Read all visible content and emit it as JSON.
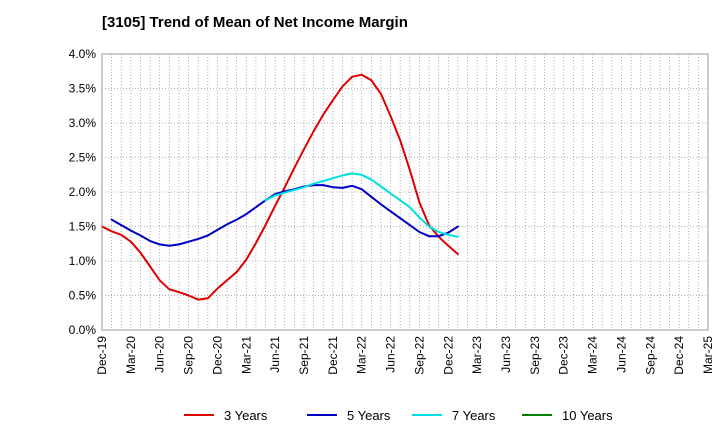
{
  "chart_data": {
    "type": "line",
    "title": "[3105]  Trend of Mean of Net Income Margin",
    "xlabel": "",
    "ylabel": "",
    "ylim": [
      0,
      4.0
    ],
    "yticks": [
      "0.0%",
      "0.5%",
      "1.0%",
      "1.5%",
      "2.0%",
      "2.5%",
      "3.0%",
      "3.5%",
      "4.0%"
    ],
    "x_tick_labels": [
      "Dec-19",
      "Mar-20",
      "Jun-20",
      "Sep-20",
      "Dec-20",
      "Mar-21",
      "Jun-21",
      "Sep-21",
      "Dec-21",
      "Mar-22",
      "Jun-22",
      "Sep-22",
      "Dec-22",
      "Mar-23",
      "Jun-23",
      "Sep-23",
      "Dec-23",
      "Mar-24",
      "Jun-24",
      "Sep-24",
      "Dec-24",
      "Mar-25"
    ],
    "grid": true,
    "legend_position": "bottom",
    "series": [
      {
        "name": "3 Years",
        "color": "#e00000",
        "points": [
          [
            0,
            1.5
          ],
          [
            1,
            1.43
          ],
          [
            2,
            1.38
          ],
          [
            3,
            1.28
          ],
          [
            4,
            1.12
          ],
          [
            5,
            0.92
          ],
          [
            6,
            0.72
          ],
          [
            7,
            0.59
          ],
          [
            8,
            0.55
          ],
          [
            9,
            0.5
          ],
          [
            10,
            0.44
          ],
          [
            11,
            0.46
          ],
          [
            12,
            0.6
          ],
          [
            13,
            0.72
          ],
          [
            14,
            0.84
          ],
          [
            15,
            1.02
          ],
          [
            16,
            1.26
          ],
          [
            17,
            1.52
          ],
          [
            18,
            1.8
          ],
          [
            19,
            2.07
          ],
          [
            20,
            2.35
          ],
          [
            21,
            2.62
          ],
          [
            22,
            2.88
          ],
          [
            23,
            3.12
          ],
          [
            24,
            3.33
          ],
          [
            25,
            3.53
          ],
          [
            26,
            3.67
          ],
          [
            27,
            3.7
          ],
          [
            28,
            3.62
          ],
          [
            29,
            3.42
          ],
          [
            30,
            3.1
          ],
          [
            31,
            2.75
          ],
          [
            32,
            2.32
          ],
          [
            33,
            1.85
          ],
          [
            34,
            1.52
          ],
          [
            35,
            1.35
          ],
          [
            36,
            1.22
          ],
          [
            37,
            1.1
          ]
        ]
      },
      {
        "name": "5 Years",
        "color": "#0000c0",
        "points": [
          [
            1,
            1.6
          ],
          [
            2,
            1.52
          ],
          [
            3,
            1.44
          ],
          [
            4,
            1.37
          ],
          [
            5,
            1.29
          ],
          [
            6,
            1.24
          ],
          [
            7,
            1.22
          ],
          [
            8,
            1.24
          ],
          [
            9,
            1.28
          ],
          [
            10,
            1.32
          ],
          [
            11,
            1.37
          ],
          [
            12,
            1.45
          ],
          [
            13,
            1.53
          ],
          [
            14,
            1.6
          ],
          [
            15,
            1.68
          ],
          [
            16,
            1.78
          ],
          [
            17,
            1.88
          ],
          [
            18,
            1.97
          ],
          [
            19,
            2.01
          ],
          [
            20,
            2.04
          ],
          [
            21,
            2.08
          ],
          [
            22,
            2.1
          ],
          [
            23,
            2.1
          ],
          [
            24,
            2.07
          ],
          [
            25,
            2.06
          ],
          [
            26,
            2.09
          ],
          [
            27,
            2.04
          ],
          [
            28,
            1.93
          ],
          [
            29,
            1.82
          ],
          [
            30,
            1.72
          ],
          [
            31,
            1.62
          ],
          [
            32,
            1.52
          ],
          [
            33,
            1.42
          ],
          [
            34,
            1.36
          ],
          [
            35,
            1.36
          ],
          [
            36,
            1.41
          ],
          [
            37,
            1.5
          ]
        ]
      },
      {
        "name": "7 Years",
        "color": "#00e0e0",
        "points": [
          [
            17,
            1.88
          ],
          [
            18,
            1.95
          ],
          [
            19,
            1.99
          ],
          [
            20,
            2.03
          ],
          [
            21,
            2.07
          ],
          [
            22,
            2.12
          ],
          [
            23,
            2.16
          ],
          [
            24,
            2.2
          ],
          [
            25,
            2.24
          ],
          [
            26,
            2.27
          ],
          [
            27,
            2.25
          ],
          [
            28,
            2.18
          ],
          [
            29,
            2.08
          ],
          [
            30,
            1.98
          ],
          [
            31,
            1.88
          ],
          [
            32,
            1.78
          ],
          [
            33,
            1.63
          ],
          [
            34,
            1.5
          ],
          [
            35,
            1.42
          ],
          [
            36,
            1.38
          ],
          [
            37,
            1.35
          ]
        ]
      },
      {
        "name": "10 Years",
        "color": "#008000",
        "points": []
      }
    ]
  }
}
